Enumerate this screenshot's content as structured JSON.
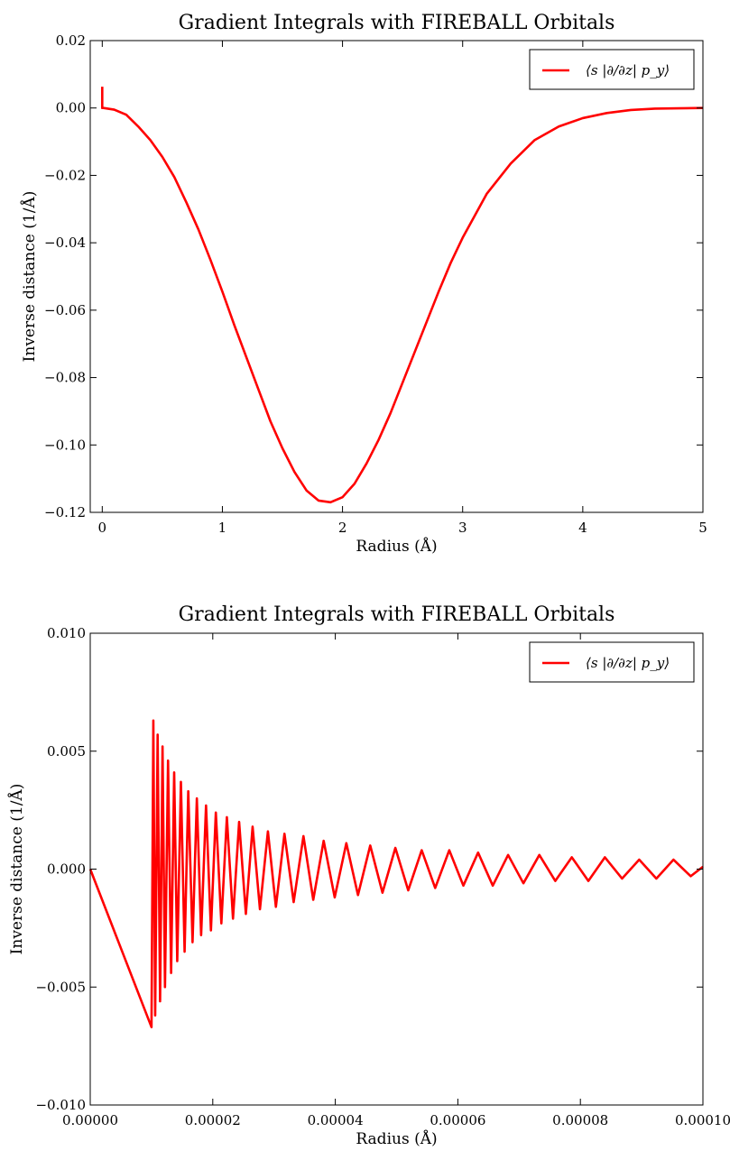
{
  "page": {
    "background": "#ffffff"
  },
  "chart_data": [
    {
      "type": "line",
      "title": "Gradient Integrals with FIREBALL Orbitals",
      "xlabel": "Radius (Å)",
      "ylabel": "Inverse distance (1/Å)",
      "xlim": [
        -0.1,
        5
      ],
      "ylim": [
        -0.12,
        0.02
      ],
      "xticks": [
        0,
        1,
        2,
        3,
        4,
        5
      ],
      "xtick_labels": [
        "0",
        "1",
        "2",
        "3",
        "4",
        "5"
      ],
      "yticks": [
        0.02,
        0.0,
        -0.02,
        -0.04,
        -0.06,
        -0.08,
        -0.1,
        -0.12
      ],
      "ytick_labels": [
        "0.02",
        "0.00",
        "−0.02",
        "−0.04",
        "−0.06",
        "−0.08",
        "−0.10",
        "−0.12"
      ],
      "legend": {
        "position": "top-right",
        "entries": [
          "⟨s |∂/∂z| p_y⟩"
        ]
      },
      "grid": false,
      "series": [
        {
          "name": "⟨s |∂/∂z| p_y⟩",
          "color": "#ff0000",
          "x": [
            0,
            0,
            0.01,
            0.1,
            0.2,
            0.3,
            0.4,
            0.5,
            0.6,
            0.7,
            0.8,
            0.9,
            1.0,
            1.1,
            1.2,
            1.3,
            1.4,
            1.5,
            1.6,
            1.7,
            1.8,
            1.9,
            2.0,
            2.1,
            2.2,
            2.3,
            2.4,
            2.5,
            2.6,
            2.7,
            2.8,
            2.9,
            3.0,
            3.2,
            3.4,
            3.6,
            3.8,
            4.0,
            4.2,
            4.4,
            4.6,
            4.8,
            5.0
          ],
          "y": [
            0.0063,
            0.0,
            0.0,
            -0.0005,
            -0.002,
            -0.0055,
            -0.0095,
            -0.0145,
            -0.0205,
            -0.028,
            -0.036,
            -0.045,
            -0.0545,
            -0.0645,
            -0.074,
            -0.0835,
            -0.093,
            -0.101,
            -0.108,
            -0.1135,
            -0.1165,
            -0.117,
            -0.1155,
            -0.1115,
            -0.1055,
            -0.0985,
            -0.0905,
            -0.0815,
            -0.0725,
            -0.0635,
            -0.0545,
            -0.046,
            -0.0385,
            -0.0255,
            -0.0165,
            -0.0095,
            -0.0055,
            -0.003,
            -0.0015,
            -0.0006,
            -0.0002,
            -0.0001,
            0.0
          ]
        }
      ]
    },
    {
      "type": "line",
      "title": "Gradient Integrals with FIREBALL Orbitals",
      "xlabel": "Radius (Å)",
      "ylabel": "Inverse distance (1/Å)",
      "xlim": [
        0,
        0.0001
      ],
      "ylim": [
        -0.01,
        0.01
      ],
      "xticks": [
        0,
        2e-05,
        4e-05,
        6e-05,
        8e-05,
        0.0001
      ],
      "xtick_labels": [
        "0.00000",
        "0.00002",
        "0.00004",
        "0.00006",
        "0.00008",
        "0.00010"
      ],
      "yticks": [
        0.01,
        0.005,
        0.0,
        -0.005,
        -0.01
      ],
      "ytick_labels": [
        "0.010",
        "0.005",
        "0.000",
        "−0.005",
        "−0.010"
      ],
      "legend": {
        "position": "top-right",
        "entries": [
          "⟨s |∂/∂z| p_y⟩"
        ]
      },
      "grid": false,
      "series": [
        {
          "name": "⟨s |∂/∂z| p_y⟩",
          "color": "#ff0000",
          "x": [
            0,
            1e-05,
            1.03e-05,
            1.06e-05,
            1.1e-05,
            1.14e-05,
            1.18e-05,
            1.22e-05,
            1.27e-05,
            1.32e-05,
            1.37e-05,
            1.42e-05,
            1.48e-05,
            1.54e-05,
            1.6e-05,
            1.67e-05,
            1.74e-05,
            1.81e-05,
            1.89e-05,
            1.97e-05,
            2.05e-05,
            2.14e-05,
            2.23e-05,
            2.33e-05,
            2.43e-05,
            2.54e-05,
            2.65e-05,
            2.77e-05,
            2.9e-05,
            3.03e-05,
            3.17e-05,
            3.32e-05,
            3.48e-05,
            3.64e-05,
            3.81e-05,
            3.99e-05,
            4.18e-05,
            4.37e-05,
            4.57e-05,
            4.77e-05,
            4.98e-05,
            5.19e-05,
            5.41e-05,
            5.63e-05,
            5.86e-05,
            6.09e-05,
            6.33e-05,
            6.57e-05,
            6.82e-05,
            7.07e-05,
            7.33e-05,
            7.59e-05,
            7.86e-05,
            8.13e-05,
            8.4e-05,
            8.68e-05,
            8.96e-05,
            9.24e-05,
            9.52e-05,
            9.8e-05,
            0.0001
          ],
          "y": [
            0.0,
            -0.0067,
            0.0063,
            -0.0062,
            0.0057,
            -0.0056,
            0.0052,
            -0.005,
            0.0046,
            -0.0044,
            0.0041,
            -0.0039,
            0.0037,
            -0.0035,
            0.0033,
            -0.0031,
            0.003,
            -0.0028,
            0.0027,
            -0.0026,
            0.0024,
            -0.0023,
            0.0022,
            -0.0021,
            0.002,
            -0.0019,
            0.0018,
            -0.0017,
            0.0016,
            -0.0016,
            0.0015,
            -0.0014,
            0.0014,
            -0.0013,
            0.0012,
            -0.0012,
            0.0011,
            -0.0011,
            0.001,
            -0.001,
            0.0009,
            -0.0009,
            0.0008,
            -0.0008,
            0.0008,
            -0.0007,
            0.0007,
            -0.0007,
            0.0006,
            -0.0006,
            0.0006,
            -0.0005,
            0.0005,
            -0.0005,
            0.0005,
            -0.0004,
            0.0004,
            -0.0004,
            0.0004,
            -0.0003,
            0.0001
          ]
        }
      ]
    }
  ]
}
